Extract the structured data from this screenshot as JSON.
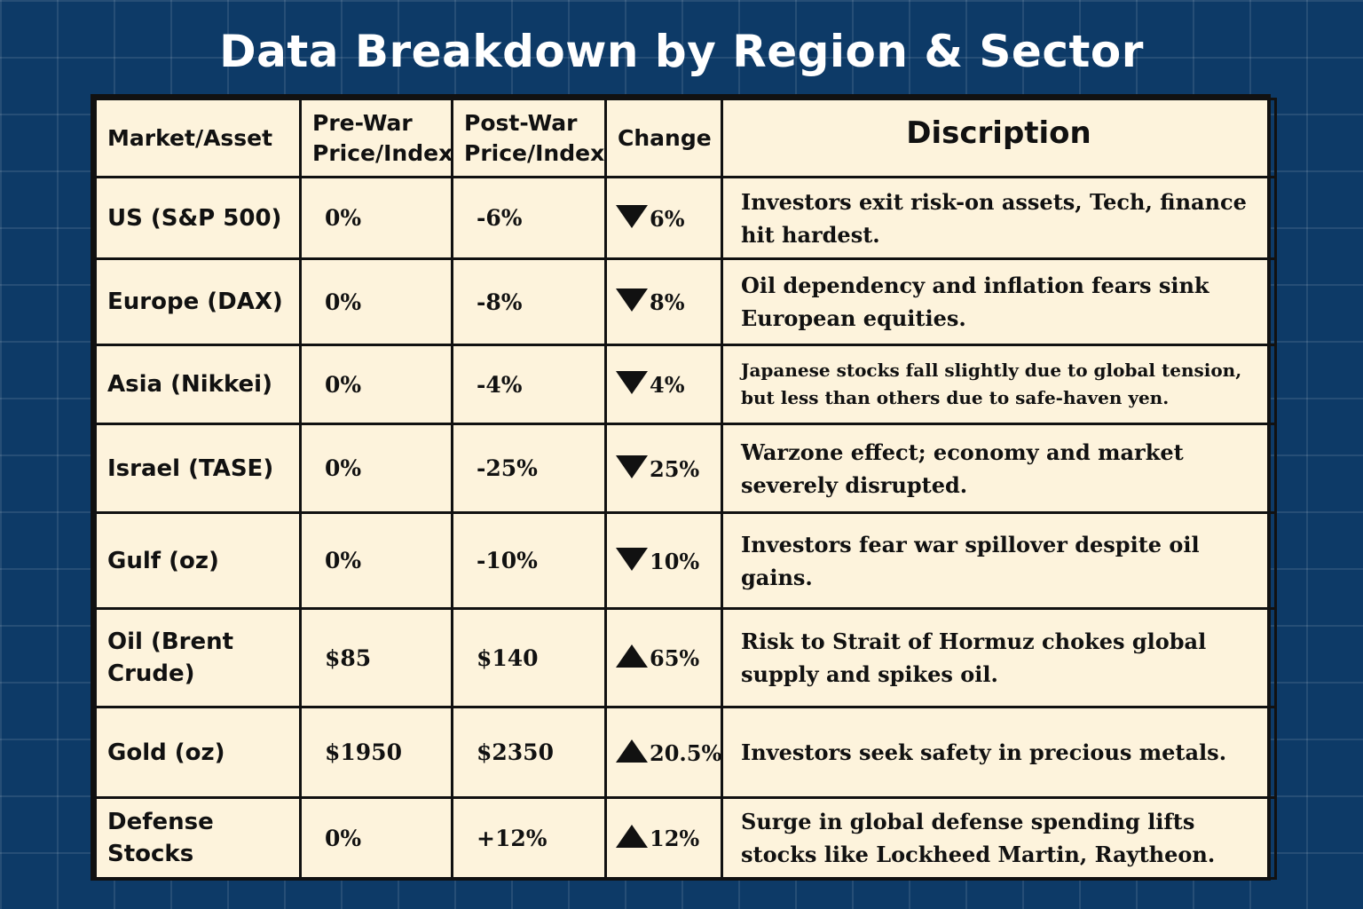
{
  "title": "Data Breakdown by Region & Sector",
  "columns": {
    "asset": "Market/Asset",
    "pre_war": "Pre-War Price/Index",
    "post_war": "Post-War Price/Index",
    "change": "Change",
    "description": "Discription"
  },
  "rows": [
    {
      "asset": "US (S&P 500)",
      "pre": "0%",
      "post": "-6%",
      "direction": "down",
      "change": "6%",
      "description": "Investors exit risk-on assets, Tech, finance hit hardest."
    },
    {
      "asset": "Europe (DAX)",
      "pre": "0%",
      "post": "-8%",
      "direction": "down",
      "change": "8%",
      "description": "Oil dependency and inflation fears sink European equities."
    },
    {
      "asset": "Asia (Nikkei)",
      "pre": "0%",
      "post": "-4%",
      "direction": "down",
      "change": "4%",
      "description": "Japanese stocks fall slightly due to global tension, but less than others due to safe-haven yen."
    },
    {
      "asset": "Israel (TASE)",
      "pre": "0%",
      "post": "-25%",
      "direction": "down",
      "change": "25%",
      "description": "Warzone effect; economy and market severely disrupted."
    },
    {
      "asset": "Gulf (oz)",
      "pre": "0%",
      "post": "-10%",
      "direction": "down",
      "change": "10%",
      "description": "Investors fear war spillover despite oil gains."
    },
    {
      "asset": "Oil (Brent Crude)",
      "pre": "$85",
      "post": "$140",
      "direction": "up",
      "change": "65%",
      "description": "Risk to Strait of Hormuz chokes global supply and spikes oil."
    },
    {
      "asset": "Gold (oz)",
      "pre": "$1950",
      "post": "$2350",
      "direction": "up",
      "change": "20.5%",
      "description": "Investors seek safety in precious metals."
    },
    {
      "asset": "Defense Stocks",
      "pre": "0%",
      "post": "+12%",
      "direction": "up",
      "change": "12%",
      "description": "Surge in global defense spending lifts stocks like Lockheed Martin, Raytheon."
    }
  ]
}
